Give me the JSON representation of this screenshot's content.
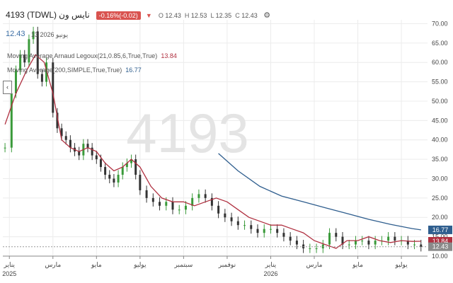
{
  "header": {
    "symbol": "4193 (TDWL)",
    "name": "نايس ون",
    "change": "-0.16%(-0.02)",
    "open_label": "O",
    "open": "12.43",
    "high_label": "H",
    "high": "12.53",
    "low_label": "L",
    "low": "12.35",
    "close_label": "C",
    "close": "12.43",
    "last_price": "12.43",
    "date_label": "13 2026 يونيو"
  },
  "indicators": {
    "ma1": "Moving Average Arnaud Legoux(21,0.85,6,True,True)",
    "ma1_value": "13.84",
    "ma2": "Moving Average(200,SIMPLE,True,True)",
    "ma2_value": "16.77"
  },
  "watermark": "4193",
  "badges": {
    "ma2": "16.77",
    "ma1": "13.84",
    "last": "12.43"
  },
  "colors": {
    "up": "#3a9a3a",
    "down": "#333333",
    "alma": "#b03040",
    "sma200": "#2f5e8e",
    "badge_blue": "#2f5e8e",
    "badge_red": "#b03040",
    "badge_gray": "#8a8a8a"
  },
  "chart_data": {
    "type": "line",
    "title": "4193 (TDWL)",
    "ylim": [
      10,
      71
    ],
    "y_ticks": [
      "10.00",
      "15.00",
      "20.00",
      "25.00",
      "30.00",
      "35.00",
      "40.00",
      "45.00",
      "50.00",
      "55.00",
      "60.00",
      "65.00",
      "70.00"
    ],
    "x_ticks": [
      {
        "label": "يناير",
        "year": "2025",
        "x": 0
      },
      {
        "label": "مارس",
        "year": "",
        "x": 2
      },
      {
        "label": "مايو",
        "year": "",
        "x": 4
      },
      {
        "label": "يوليو",
        "year": "",
        "x": 6
      },
      {
        "label": "سبتمبر",
        "year": "",
        "x": 8
      },
      {
        "label": "نوفمبر",
        "year": "",
        "x": 10
      },
      {
        "label": "يناير",
        "year": "2026",
        "x": 12
      },
      {
        "label": "مارس",
        "year": "",
        "x": 14
      },
      {
        "label": "مايو",
        "year": "",
        "x": 16
      },
      {
        "label": "يوليو",
        "year": "",
        "x": 18
      }
    ],
    "x_range": [
      -0.3,
      19.2
    ],
    "series": [
      {
        "type": "candles",
        "x": [
          -0.2,
          0.1,
          0.3,
          0.5,
          0.7,
          0.9,
          1.1,
          1.3,
          1.5,
          1.7,
          2.0,
          2.2,
          2.4,
          2.6,
          2.8,
          3.0,
          3.2,
          3.4,
          3.6,
          3.8,
          4.0,
          4.2,
          4.4,
          4.6,
          4.8,
          5.0,
          5.2,
          5.4,
          5.6,
          5.8,
          6.0,
          6.3,
          6.6,
          6.9,
          7.2,
          7.5,
          7.8,
          8.1,
          8.4,
          8.7,
          9.0,
          9.3,
          9.6,
          9.9,
          10.2,
          10.5,
          10.8,
          11.1,
          11.4,
          11.7,
          12.0,
          12.3,
          12.6,
          12.9,
          13.2,
          13.5,
          13.8,
          14.1,
          14.4,
          14.7,
          15.0,
          15.3,
          15.6,
          15.9,
          16.2,
          16.5,
          16.8,
          17.1,
          17.4,
          17.7,
          18.0,
          18.3,
          18.6,
          18.9
        ],
        "values": [
          38,
          52,
          58,
          62,
          60,
          66,
          68,
          57,
          55,
          60,
          47,
          43,
          41,
          40,
          38,
          37,
          36,
          39,
          38,
          36,
          35,
          33,
          31,
          30,
          29,
          31,
          33,
          34,
          35,
          31,
          27,
          25,
          24,
          23,
          24,
          22,
          22,
          23,
          25,
          26,
          25,
          23,
          21,
          20,
          19,
          18,
          18,
          17,
          16,
          17,
          17,
          16,
          15,
          14,
          13,
          12,
          12,
          12,
          13,
          16,
          15,
          13,
          13,
          14,
          14,
          13,
          14,
          14,
          15,
          14,
          14,
          13,
          13,
          12.4
        ]
      },
      {
        "name": "",
        "type": "line",
        "x": [
          -0.2,
          0.3,
          0.8,
          1.2,
          1.6,
          2.0,
          2.4,
          2.8,
          3.2,
          3.6,
          4.0,
          4.4,
          4.8,
          5.2,
          5.6,
          6.0,
          6.5,
          7.0,
          7.5,
          8.0,
          8.5,
          9.0,
          9.5,
          10.0,
          10.5,
          11.0,
          11.5,
          12.0,
          12.5,
          13.0,
          13.5,
          14.0,
          14.5,
          15.0,
          15.5,
          16.0,
          16.5,
          17.0,
          17.5,
          18.0,
          18.5,
          18.9
        ],
        "values": [
          44,
          52,
          58,
          62,
          60,
          52,
          40,
          38,
          37,
          38,
          37,
          34,
          32,
          33,
          35,
          33,
          28,
          25,
          24,
          24,
          23,
          24,
          25,
          24,
          22,
          20,
          19,
          18,
          18,
          17,
          16,
          14,
          13,
          12,
          14,
          14,
          15,
          14,
          13.5,
          14,
          13.8,
          13.84
        ]
      },
      {
        "name": "",
        "type": "line",
        "x": [
          9.6,
          10.5,
          11.5,
          12.5,
          13.5,
          14.5,
          15.5,
          16.5,
          17.5,
          18.5,
          18.9
        ],
        "values": [
          36.5,
          32,
          28,
          25.5,
          24,
          22.5,
          21,
          19.5,
          18.2,
          17.1,
          16.77
        ]
      }
    ]
  }
}
